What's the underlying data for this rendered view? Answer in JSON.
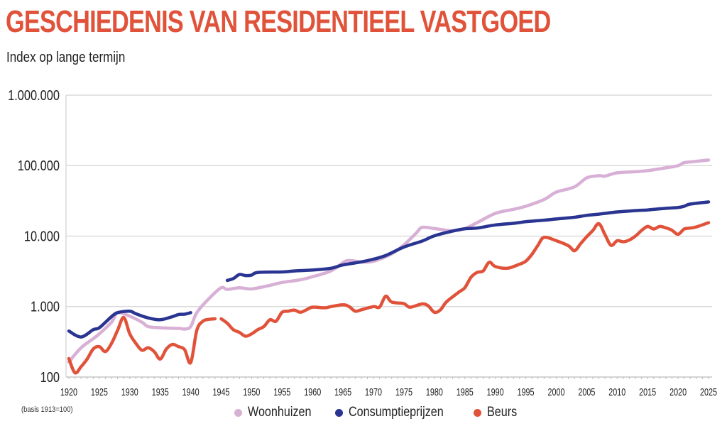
{
  "header": {
    "title": "GESCHIEDENIS VAN RESIDENTIEEL VASTGOED",
    "subtitle": "Index op lange termijn"
  },
  "footnote": "(basis 1913=100)",
  "colors": {
    "title": "#e0533a",
    "woonhuizen": "#d8b0d6",
    "consumptieprijzen": "#2a3592",
    "beurs": "#e0533a",
    "grid": "#cccccc"
  },
  "chart_data": {
    "type": "line",
    "title": "GESCHIEDENIS VAN RESIDENTIEEL VASTGOED",
    "subtitle": "Index op lange termijn",
    "xlabel": "",
    "ylabel": "",
    "yscale": "log",
    "ylim": [
      100,
      1000000
    ],
    "xlim": [
      1920,
      2025
    ],
    "grid": true,
    "legend_position": "bottom-center",
    "y_ticks": [
      {
        "value": 1000000,
        "label": "1.000.000"
      },
      {
        "value": 100000,
        "label": "100.000"
      },
      {
        "value": 10000,
        "label": "10.000"
      },
      {
        "value": 1000,
        "label": "1.000"
      },
      {
        "value": 100,
        "label": "100"
      }
    ],
    "x_ticks": [
      "1920",
      "1925",
      "1930",
      "1935",
      "1940",
      "1945",
      "1950",
      "1955",
      "1960",
      "1965",
      "1970",
      "1975",
      "1980",
      "1985",
      "1990",
      "1995",
      "2000",
      "2005",
      "2010",
      "2015",
      "2020",
      "2025"
    ],
    "annotation": "(basis 1913=100)",
    "series": [
      {
        "name": "Woonhuizen",
        "color": "#d8b0d6",
        "segments": [
          [
            [
              1920,
              163
            ],
            [
              1922,
              260
            ],
            [
              1924,
              350
            ],
            [
              1925,
              410
            ],
            [
              1927,
              600
            ],
            [
              1928,
              820
            ],
            [
              1930,
              730
            ],
            [
              1932,
              600
            ],
            [
              1933,
              520
            ],
            [
              1935,
              500
            ],
            [
              1938,
              490
            ],
            [
              1939,
              480
            ],
            [
              1940,
              520
            ],
            [
              1941,
              820
            ],
            [
              1943,
              1300
            ],
            [
              1945,
              1850
            ],
            [
              1946,
              1750
            ],
            [
              1948,
              1850
            ],
            [
              1950,
              1780
            ],
            [
              1953,
              2000
            ],
            [
              1955,
              2200
            ],
            [
              1958,
              2400
            ],
            [
              1960,
              2650
            ],
            [
              1963,
              3200
            ],
            [
              1965,
              4200
            ],
            [
              1966,
              4500
            ],
            [
              1968,
              4300
            ],
            [
              1970,
              4400
            ],
            [
              1973,
              5600
            ],
            [
              1975,
              7500
            ],
            [
              1977,
              11000
            ],
            [
              1978,
              13300
            ],
            [
              1980,
              12800
            ],
            [
              1983,
              11900
            ],
            [
              1985,
              12800
            ],
            [
              1987,
              15500
            ],
            [
              1990,
              21000
            ],
            [
              1993,
              24000
            ],
            [
              1995,
              26500
            ],
            [
              1998,
              33000
            ],
            [
              2000,
              42000
            ],
            [
              2003,
              50000
            ],
            [
              2005,
              67000
            ],
            [
              2007,
              72000
            ],
            [
              2008,
              71000
            ],
            [
              2010,
              79000
            ],
            [
              2013,
              82000
            ],
            [
              2015,
              85000
            ],
            [
              2018,
              93000
            ],
            [
              2020,
              100000
            ],
            [
              2021,
              110000
            ],
            [
              2023,
              115000
            ],
            [
              2025,
              120000
            ]
          ]
        ]
      },
      {
        "name": "Consumptieprijzen",
        "color": "#2a3592",
        "segments": [
          [
            [
              1920,
              450
            ],
            [
              1922,
              370
            ],
            [
              1924,
              470
            ],
            [
              1925,
              500
            ],
            [
              1927,
              720
            ],
            [
              1928,
              820
            ],
            [
              1930,
              860
            ],
            [
              1931,
              790
            ],
            [
              1933,
              690
            ],
            [
              1935,
              650
            ],
            [
              1937,
              720
            ],
            [
              1938,
              770
            ],
            [
              1939,
              780
            ],
            [
              1940,
              820
            ]
          ],
          [
            [
              1946,
              2350
            ],
            [
              1947,
              2500
            ],
            [
              1948,
              2850
            ],
            [
              1949,
              2750
            ],
            [
              1950,
              2800
            ],
            [
              1951,
              3050
            ],
            [
              1955,
              3100
            ],
            [
              1957,
              3200
            ],
            [
              1960,
              3300
            ],
            [
              1963,
              3500
            ],
            [
              1965,
              3900
            ],
            [
              1968,
              4300
            ],
            [
              1970,
              4700
            ],
            [
              1972,
              5300
            ],
            [
              1975,
              7000
            ],
            [
              1978,
              8500
            ],
            [
              1980,
              10100
            ],
            [
              1983,
              11800
            ],
            [
              1985,
              12700
            ],
            [
              1987,
              13000
            ],
            [
              1990,
              14400
            ],
            [
              1993,
              15200
            ],
            [
              1995,
              16000
            ],
            [
              1998,
              16800
            ],
            [
              2000,
              17500
            ],
            [
              2003,
              18500
            ],
            [
              2005,
              19700
            ],
            [
              2007,
              20500
            ],
            [
              2008,
              21000
            ],
            [
              2010,
              22000
            ],
            [
              2013,
              23000
            ],
            [
              2015,
              23500
            ],
            [
              2018,
              24800
            ],
            [
              2020,
              25500
            ],
            [
              2021,
              26500
            ],
            [
              2022,
              28500
            ],
            [
              2025,
              30500
            ]
          ]
        ]
      },
      {
        "name": "Beurs",
        "color": "#e0533a",
        "segments": [
          [
            [
              1920,
              183
            ],
            [
              1921,
              115
            ],
            [
              1922,
              140
            ],
            [
              1923,
              180
            ],
            [
              1924,
              250
            ],
            [
              1925,
              270
            ],
            [
              1926,
              230
            ],
            [
              1927,
              300
            ],
            [
              1928,
              460
            ],
            [
              1929,
              700
            ],
            [
              1930,
              410
            ],
            [
              1931,
              300
            ],
            [
              1932,
              240
            ],
            [
              1933,
              260
            ],
            [
              1934,
              230
            ],
            [
              1935,
              180
            ],
            [
              1936,
              250
            ],
            [
              1937,
              290
            ],
            [
              1938,
              270
            ],
            [
              1939,
              245
            ],
            [
              1940,
              160
            ],
            [
              1941,
              460
            ],
            [
              1942,
              620
            ],
            [
              1943,
              660
            ],
            [
              1944,
              670
            ]
          ],
          [
            [
              1945,
              670
            ],
            [
              1946,
              580
            ],
            [
              1947,
              470
            ],
            [
              1948,
              430
            ],
            [
              1949,
              380
            ],
            [
              1950,
              410
            ],
            [
              1951,
              470
            ],
            [
              1952,
              520
            ],
            [
              1953,
              650
            ],
            [
              1954,
              620
            ],
            [
              1955,
              830
            ],
            [
              1956,
              860
            ],
            [
              1957,
              890
            ],
            [
              1958,
              830
            ],
            [
              1959,
              900
            ],
            [
              1960,
              980
            ],
            [
              1962,
              960
            ],
            [
              1963,
              1000
            ],
            [
              1965,
              1060
            ],
            [
              1966,
              1000
            ],
            [
              1967,
              860
            ],
            [
              1968,
              900
            ],
            [
              1970,
              1000
            ],
            [
              1971,
              980
            ],
            [
              1972,
              1400
            ],
            [
              1973,
              1160
            ],
            [
              1975,
              1100
            ],
            [
              1976,
              980
            ],
            [
              1978,
              1090
            ],
            [
              1979,
              1020
            ],
            [
              1980,
              830
            ],
            [
              1981,
              900
            ],
            [
              1982,
              1170
            ],
            [
              1984,
              1600
            ],
            [
              1985,
              1850
            ],
            [
              1986,
              2600
            ],
            [
              1987,
              3050
            ],
            [
              1988,
              3200
            ],
            [
              1989,
              4250
            ],
            [
              1990,
              3700
            ],
            [
              1992,
              3500
            ],
            [
              1994,
              4000
            ],
            [
              1995,
              4400
            ],
            [
              1996,
              5500
            ],
            [
              1997,
              7400
            ],
            [
              1998,
              9600
            ],
            [
              2000,
              8600
            ],
            [
              2002,
              7300
            ],
            [
              2003,
              6200
            ],
            [
              2004,
              7800
            ],
            [
              2005,
              9800
            ],
            [
              2006,
              12000
            ],
            [
              2007,
              15000
            ],
            [
              2008,
              10500
            ],
            [
              2009,
              7400
            ],
            [
              2010,
              8600
            ],
            [
              2011,
              8300
            ],
            [
              2012,
              8800
            ],
            [
              2013,
              10000
            ],
            [
              2014,
              12000
            ],
            [
              2015,
              13700
            ],
            [
              2016,
              12600
            ],
            [
              2017,
              13700
            ],
            [
              2018,
              13100
            ],
            [
              2019,
              12100
            ],
            [
              2020,
              10600
            ],
            [
              2021,
              12600
            ],
            [
              2022,
              13000
            ],
            [
              2023,
              13500
            ],
            [
              2025,
              15500
            ]
          ]
        ]
      }
    ]
  }
}
